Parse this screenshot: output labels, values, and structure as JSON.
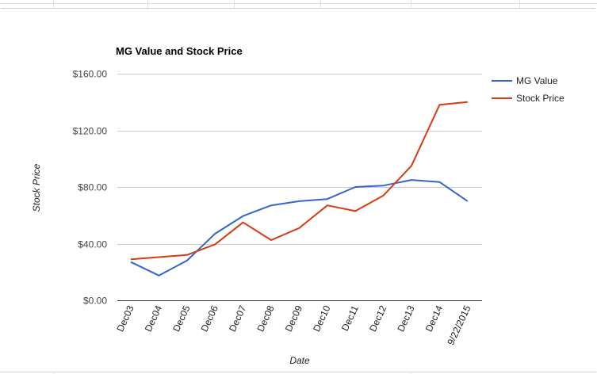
{
  "chart_data": {
    "type": "line",
    "title": "MG Value and Stock Price",
    "xlabel": "Date",
    "ylabel": "Stock Price",
    "categories": [
      "Dec03",
      "Dec04",
      "Dec05",
      "Dec06",
      "Dec07",
      "Dec08",
      "Dec09",
      "Dec10",
      "Dec11",
      "Dec12",
      "Dec13",
      "Dec14",
      "9/22/2015"
    ],
    "yticks": [
      "$0.00",
      "$40.00",
      "$80.00",
      "$120.00",
      "$160.00"
    ],
    "ylim": [
      0,
      160
    ],
    "grid": true,
    "legend_position": "right",
    "series": [
      {
        "name": "MG Value",
        "color": "#3366cc",
        "values": [
          27.0,
          17.5,
          28.0,
          47.0,
          59.5,
          67.0,
          70.0,
          71.5,
          80.0,
          81.0,
          85.0,
          83.5,
          70.0
        ]
      },
      {
        "name": "Stock Price",
        "color": "#dc3912",
        "values": [
          29.0,
          30.5,
          32.0,
          39.5,
          55.0,
          42.5,
          51.0,
          67.0,
          63.0,
          74.0,
          95.0,
          138.0,
          140.0
        ]
      }
    ]
  }
}
